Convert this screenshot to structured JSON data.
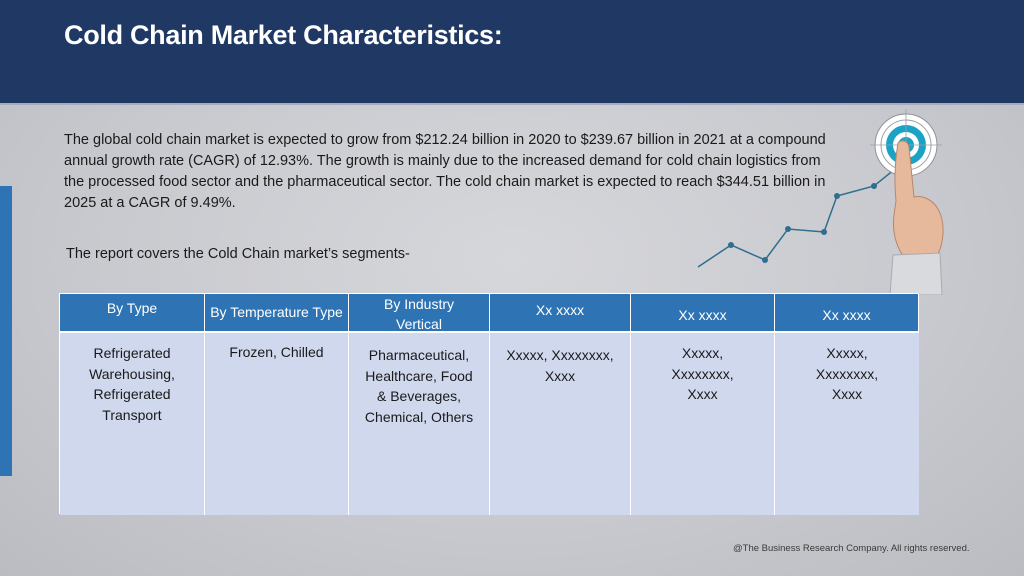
{
  "header": {
    "title": "Cold Chain Market Characteristics:"
  },
  "body": {
    "paragraph": "The global cold chain market is expected to grow from $212.24 billion in 2020 to $239.67 billion in 2021 at a compound annual growth rate (CAGR) of 12.93%. The growth is mainly due to the increased demand for cold chain logistics from the processed food sector and the pharmaceutical sector. The cold chain market is expected to reach $344.51 billion in 2025 at a CAGR of 9.49%.",
    "segments_intro": "The report covers the Cold Chain market’s segments-"
  },
  "table": {
    "headers": [
      "By Type",
      "By Temperature Type",
      "By Industry Vertical",
      "Xx xxxx",
      "Xx xxxx",
      "Xx xxxx"
    ],
    "cells": [
      "Refrigerated\nWarehousing,\nRefrigerated\nTransport",
      "Frozen, Chilled",
      "Pharmaceutical,\nHealthcare, Food\n& Beverages,\nChemical, Others",
      "Xxxxx, Xxxxxxxx,\nXxxx",
      "Xxxxx,\nXxxxxxxx,\nXxxx",
      "Xxxxx,\nXxxxxxxx,\nXxxx"
    ]
  },
  "decoration": {
    "icon": "target-hand-growth-line-icon",
    "accent": "#2e6e8e",
    "target": "#1aa3c4"
  },
  "footer": {
    "copyright": "@The Business Research Company. All rights reserved."
  }
}
